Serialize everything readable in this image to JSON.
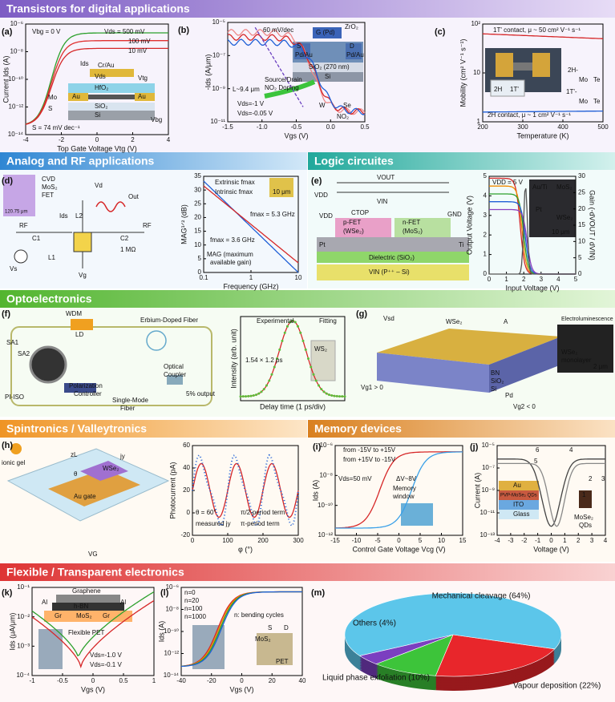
{
  "sections": [
    {
      "title": "Transistors for digital applications"
    },
    {
      "title": "Analog and RF applications"
    },
    {
      "title": "Logic circuites"
    },
    {
      "title": "Optoelectronics"
    },
    {
      "title": "Spintronics / Valleytronics"
    },
    {
      "title": "Memory devices"
    },
    {
      "title": "Flexible / Transparent electronics"
    }
  ],
  "panels": {
    "a": {
      "label": "(a)",
      "x_label": "Top Gate Voltage Vtg (V)",
      "y_label": "Current Ids (A)",
      "xticks": [
        -4,
        -2,
        0,
        2,
        4
      ],
      "yticks": [
        "10⁻¹⁴",
        "10⁻¹²",
        "10⁻¹⁰",
        "10⁻⁸",
        "10⁻⁶"
      ],
      "annotations": [
        "Vbg = 0 V",
        "Vds = 500 mV",
        "100 mV",
        "10 mV",
        "Ids",
        "Vds",
        "Vtg",
        "Cr/Au",
        "HfO₂",
        "Au",
        "Au",
        "SiO₂",
        "Si",
        "Mo",
        "S",
        "Vbg",
        "S = 74 mV dec⁻¹"
      ]
    },
    "b": {
      "label": "(b)",
      "x_label": "Vgs (V)",
      "y_label": "-Ids (A/μm)",
      "xticks": [
        "-1.5",
        "-1.0",
        "-0.5",
        "0.0",
        "0.5"
      ],
      "yticks": [
        "10⁻¹¹",
        "10⁻⁹",
        "10⁻⁷",
        "10⁻⁵"
      ],
      "annotations": [
        "60 mV/dec",
        "G (Pd)",
        "ZrO₂",
        "S",
        "Pd/Au",
        "D",
        "Pd/Au",
        "SiO₂ (270 nm)",
        "Si",
        "L~9.4 μm",
        "Source/Drain",
        "NO₂ Doping",
        "W",
        "Se",
        "NO₂",
        "Vds=-1 V",
        "Vds=-0.05 V"
      ]
    },
    "c": {
      "label": "(c)",
      "x_label": "Temperature (K)",
      "y_label": "Mobility (cm² V⁻¹ s⁻¹)",
      "xticks": [
        200,
        300,
        400,
        500
      ],
      "yticks": [
        "1",
        "10",
        "10²"
      ],
      "annotations": [
        "1T' contact, μ ~ 50 cm² V⁻¹ s⁻¹",
        "2H contact, μ ~ 1 cm² V⁻¹ s⁻¹",
        "2H-",
        "Mo",
        "Te",
        "1T'-",
        "Mo",
        "Te",
        "2H",
        "1T'"
      ]
    },
    "d": {
      "label": "(d)",
      "x_label": "Frequency (GHz)",
      "y_label": "MAG¹ᐟ² (dB)",
      "xticks": [
        0.1,
        1,
        10
      ],
      "yticks": [
        0,
        5,
        10,
        15,
        20,
        25,
        30,
        35
      ],
      "annotations": [
        "CVD",
        "MoS₂",
        "FET",
        "120.75 μm",
        "Ids",
        "Vd",
        "L2",
        "Out",
        "RF",
        "RF",
        "C1",
        "C2",
        "1 MΩ",
        "Vs",
        "L1",
        "Vg",
        "Extrinsic fmax",
        "Intrinsic fmax",
        "fmax = 5.3 GHz",
        "fmax = 3.6 GHz",
        "MAG (maximum",
        "available gain)",
        "10 μm"
      ]
    },
    "e": {
      "label": "(e)",
      "x_label": "Input Voltage (V)",
      "y_label": "Output Voltage (V)",
      "y2_label": "Gain (-dVOUT / dVIN)",
      "xticks": [
        0,
        1,
        2,
        3,
        4,
        5
      ],
      "yticks": [
        0,
        1,
        2,
        3,
        4,
        5
      ],
      "y2ticks": [
        0,
        5,
        10,
        15,
        20,
        25,
        30
      ],
      "annotations": [
        "VOUT",
        "VDD",
        "VIN",
        "CTOP",
        "VDD",
        "p-FET",
        "(WSe₂)",
        "n-FET",
        "(MoS₂)",
        "GND",
        "Pt",
        "Ti",
        "Dielectric (SiO₂)",
        "VIN (P⁺⁺ – Si)",
        "VDD = 5 V",
        "Au/Ti",
        "MoS₂",
        "Pt",
        "WSe₂",
        "10 μm"
      ]
    },
    "f": {
      "label": "(f)",
      "x_label": "Delay time (1 ps/div)",
      "y_label": "Intensity (arb. unit)",
      "annotations": [
        "WDM",
        "LD",
        "Erbium-Doped Fiber",
        "SA1",
        "SA2",
        "PI-ISO",
        "Polarization",
        "Controller",
        "Single-Mode",
        "Fiber",
        "Optical",
        "Coupler",
        "5% output",
        "Experimental",
        "Fitting",
        "1.54 × 1.2 ps",
        "WS₂"
      ]
    },
    "g": {
      "label": "(g)",
      "annotations": [
        "Vsd",
        "WSe₂",
        "A",
        "Electroluminescence",
        "Vg1 > 0",
        "BN",
        "SiO₂",
        "Si",
        "Pd",
        "Vg2 < 0",
        "WSe₂",
        "monolayer",
        "2 μm"
      ]
    },
    "h": {
      "label": "(h)",
      "x_label": "φ (°)",
      "y_label": "Photocurrent (pA)",
      "xticks": [
        0,
        100,
        200,
        300
      ],
      "yticks": [
        -20,
        0,
        20,
        40,
        60
      ],
      "annotations": [
        "ionic gel",
        "Au gate",
        "VG",
        "WSe₂",
        "θ",
        "zL",
        "jy",
        "θ = 60°",
        "measured jy",
        "π/2-period term",
        "π-period term"
      ]
    },
    "i": {
      "label": "(i)",
      "x_label": "Control Gate Voltage Vcg (V)",
      "y_label": "Ids (A)",
      "xticks": [
        -15,
        -10,
        -5,
        0,
        5,
        10,
        15
      ],
      "yticks": [
        "10⁻¹²",
        "10⁻¹⁰",
        "10⁻⁸",
        "10⁻⁶"
      ],
      "annotations": [
        "from -15V to +15V",
        "from +15V to -15V",
        "Vds=50 mV",
        "ΔV~8V",
        "Memory",
        "window"
      ]
    },
    "j": {
      "label": "(j)",
      "x_label": "Voltage (V)",
      "y_label": "Current (A)",
      "xticks": [
        -4,
        -3,
        -2,
        -1,
        0,
        1,
        2,
        3,
        4
      ],
      "yticks": [
        "10⁻¹³",
        "10⁻¹¹",
        "10⁻⁹",
        "10⁻⁷",
        "10⁻⁵"
      ],
      "annotations": [
        "6",
        "4",
        "5",
        "1",
        "2",
        "3",
        "Au",
        "PVP-MoSe₂ QDs",
        "ITO",
        "Glass",
        "MoSe₂",
        "QDs"
      ]
    },
    "k": {
      "label": "(k)",
      "x_label": "Vgs (V)",
      "y_label": "Ids (μA/μm)",
      "xticks": [
        -1,
        -0.5,
        0,
        0.5,
        1
      ],
      "yticks": [
        "10⁻⁴",
        "10⁻³",
        "10⁻²",
        "10⁻¹"
      ],
      "annotations": [
        "Graphene",
        "h-BN",
        "Al",
        "Gr",
        "MoS₂",
        "Gr",
        "Al",
        "Flexible PET",
        "Vds=-1.0 V",
        "Vds=-0.1 V"
      ]
    },
    "l": {
      "label": "(l)",
      "x_label": "Vgs (V)",
      "y_label": "Ids (A)",
      "xticks": [
        -40,
        -20,
        0,
        20,
        40
      ],
      "yticks": [
        "10⁻¹⁴",
        "10⁻¹²",
        "10⁻¹⁰",
        "10⁻⁸",
        "10⁻⁶"
      ],
      "annotations": [
        "n=0",
        "n=20",
        "n=100",
        "n=1000",
        "n: bending cycles",
        "S",
        "D",
        "MoS₂",
        "PET"
      ]
    },
    "m": {
      "label": "(m)",
      "type": "pie",
      "slices": [
        {
          "label": "Vapour deposition (22%)",
          "value": 22,
          "color": "#e8262b"
        },
        {
          "label": "Liquid phase exfoliation (10%)",
          "value": 10,
          "color": "#3dc43a"
        },
        {
          "label": "Others (4%)",
          "value": 4,
          "color": "#7b3fc0"
        },
        {
          "label": "Mechanical cleavage (64%)",
          "value": 64,
          "color": "#5cc6ea"
        }
      ]
    }
  }
}
